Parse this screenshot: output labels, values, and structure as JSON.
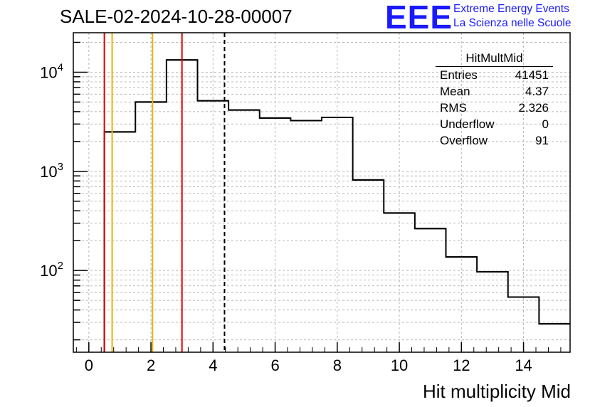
{
  "title": "SALE-02-2024-10-28-00007",
  "logo": {
    "text": "EEE",
    "line1": "Extreme Energy Events",
    "line2": "La Scienza nelle Scuole",
    "color": "#1a1aff"
  },
  "stats": {
    "title": "HitMultMid",
    "rows": [
      {
        "label": "Entries",
        "value": "41451"
      },
      {
        "label": "Mean",
        "value": "4.37"
      },
      {
        "label": "RMS",
        "value": "2.326"
      },
      {
        "label": "Underflow",
        "value": "0"
      },
      {
        "label": "Overflow",
        "value": "91"
      }
    ]
  },
  "chart_data": {
    "type": "histogram",
    "title": "SALE-02-2024-10-28-00007",
    "xlabel": "Hit multiplicity Mid",
    "ylabel": "",
    "yscale": "log",
    "xlim": [
      -0.5,
      15.5
    ],
    "ylim": [
      15,
      25000
    ],
    "xticks": [
      0,
      2,
      4,
      6,
      8,
      10,
      12,
      14
    ],
    "yticks": [
      {
        "value": 100,
        "base": "10",
        "exp": "2"
      },
      {
        "value": 1000,
        "base": "10",
        "exp": "3"
      },
      {
        "value": 10000,
        "base": "10",
        "exp": "4"
      }
    ],
    "bins": [
      {
        "lo": 0.5,
        "hi": 1.5,
        "count": 2500
      },
      {
        "lo": 1.5,
        "hi": 2.5,
        "count": 5000
      },
      {
        "lo": 2.5,
        "hi": 3.5,
        "count": 13300
      },
      {
        "lo": 3.5,
        "hi": 4.5,
        "count": 5150
      },
      {
        "lo": 4.5,
        "hi": 5.5,
        "count": 4150
      },
      {
        "lo": 5.5,
        "hi": 6.5,
        "count": 3450
      },
      {
        "lo": 6.5,
        "hi": 7.5,
        "count": 3250
      },
      {
        "lo": 7.5,
        "hi": 8.5,
        "count": 3500
      },
      {
        "lo": 8.5,
        "hi": 9.5,
        "count": 820
      },
      {
        "lo": 9.5,
        "hi": 10.5,
        "count": 380
      },
      {
        "lo": 10.5,
        "hi": 11.5,
        "count": 265
      },
      {
        "lo": 11.5,
        "hi": 12.5,
        "count": 137
      },
      {
        "lo": 12.5,
        "hi": 13.5,
        "count": 97
      },
      {
        "lo": 13.5,
        "hi": 14.5,
        "count": 54
      },
      {
        "lo": 14.5,
        "hi": 15.5,
        "count": 29
      }
    ],
    "vlines": [
      {
        "x": 0.5,
        "color": "#e00000",
        "style": "solid"
      },
      {
        "x": 0.75,
        "color": "#f0b000",
        "style": "solid"
      },
      {
        "x": 2.05,
        "color": "#f0b000",
        "style": "solid"
      },
      {
        "x": 3.0,
        "color": "#e00000",
        "style": "solid"
      },
      {
        "x": 4.37,
        "color": "#000000",
        "style": "dashed"
      }
    ],
    "grid": true
  }
}
